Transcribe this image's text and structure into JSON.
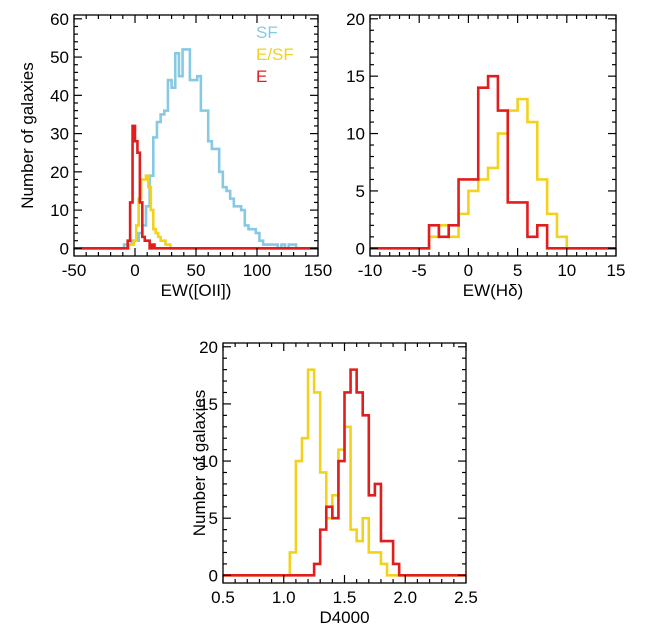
{
  "colors": {
    "SF": "#87c9e3",
    "E/SF": "#f2d21c",
    "E": "#e01e1e"
  },
  "chart_data": [
    {
      "type": "histogram",
      "xlabel": "EW([OII])",
      "ylabel": "Number of galaxies",
      "xlim": [
        -50,
        150
      ],
      "ylim": [
        -2,
        61
      ],
      "xticks": [
        "-50",
        "0",
        "50",
        "100",
        "150"
      ],
      "yticks": [
        "0",
        "10",
        "20",
        "30",
        "40",
        "50",
        "60"
      ],
      "legend": {
        "placement": "top-right",
        "entries": [
          "SF",
          "E/SF",
          "E"
        ]
      },
      "series": [
        {
          "name": "SF",
          "color_key": "SF",
          "edges": [
            -18,
            -15,
            -12,
            -9,
            -6,
            -3,
            0,
            3,
            6,
            9,
            12,
            15,
            18,
            21,
            24,
            27,
            30,
            33,
            36,
            39,
            42,
            45,
            48,
            51,
            54,
            57,
            60,
            63,
            66,
            69,
            72,
            75,
            78,
            81,
            84,
            87,
            90,
            93,
            96,
            99,
            102,
            105,
            108,
            111,
            114,
            117,
            120,
            123,
            126,
            129,
            132,
            135,
            138,
            141,
            144
          ],
          "values": [
            0,
            0,
            0,
            1,
            1,
            2,
            2,
            4,
            6,
            11,
            19,
            29,
            33,
            35,
            36,
            44,
            42,
            51,
            45,
            52,
            52,
            44,
            44,
            45,
            36,
            36,
            28,
            26,
            26,
            20,
            16,
            15,
            13,
            11,
            11,
            10,
            6,
            5,
            5,
            4,
            2,
            1,
            1,
            1,
            1,
            0,
            1,
            0,
            1,
            1,
            0,
            0,
            0,
            0
          ]
        },
        {
          "name": "E/SF",
          "color_key": "E/SF",
          "edges": [
            -5,
            -3,
            -1,
            1,
            3,
            5,
            7,
            9,
            11,
            13,
            15,
            17,
            19,
            21,
            23,
            25,
            27,
            29,
            31
          ],
          "values": [
            1,
            1,
            2,
            6,
            13,
            18,
            18,
            19,
            16,
            10,
            5,
            4,
            3,
            2,
            2,
            1,
            1,
            0
          ]
        },
        {
          "name": "E",
          "color_key": "E",
          "edges": [
            -6,
            -4,
            -2,
            0,
            2,
            4,
            6,
            8,
            10,
            12,
            14,
            16
          ],
          "values": [
            2,
            12,
            32,
            28,
            25,
            12,
            3,
            2,
            2,
            0,
            1
          ]
        }
      ]
    },
    {
      "type": "histogram",
      "xlabel": "EW(Hδ)",
      "ylabel": "",
      "xlim": [
        -10,
        15
      ],
      "ylim": [
        -0.67,
        20.33
      ],
      "xticks": [
        "-10",
        "-5",
        "0",
        "5",
        "10",
        "15"
      ],
      "yticks": [
        "0",
        "5",
        "10",
        "15",
        "20"
      ],
      "series": [
        {
          "name": "E/SF",
          "color_key": "E/SF",
          "edges": [
            -4,
            -3,
            -2,
            -1,
            0,
            1,
            2,
            3,
            4,
            5,
            6,
            7,
            8,
            9,
            10
          ],
          "values": [
            1,
            2,
            1,
            3,
            5,
            6,
            7,
            10,
            12,
            13,
            11,
            6,
            3,
            1
          ]
        },
        {
          "name": "E",
          "color_key": "E",
          "edges": [
            -4,
            -3,
            -2,
            -1,
            0,
            1,
            2,
            3,
            4,
            5,
            6,
            7,
            8
          ],
          "values": [
            2,
            1,
            2,
            6,
            6,
            14,
            15,
            12,
            4,
            4,
            1,
            2
          ]
        }
      ]
    },
    {
      "type": "histogram",
      "xlabel": "D4000",
      "ylabel": "Number of galaxies",
      "xlim": [
        0.5,
        2.5
      ],
      "ylim": [
        -0.67,
        20.33
      ],
      "xticks": [
        "0.5",
        "1.0",
        "1.5",
        "2.0",
        "2.5"
      ],
      "yticks": [
        "0",
        "5",
        "10",
        "15",
        "20"
      ],
      "series": [
        {
          "name": "E/SF",
          "color_key": "E/SF",
          "edges": [
            1.05,
            1.1,
            1.15,
            1.2,
            1.25,
            1.3,
            1.35,
            1.4,
            1.45,
            1.5,
            1.55,
            1.6,
            1.65,
            1.7,
            1.75,
            1.8,
            1.85
          ],
          "values": [
            2,
            10,
            12,
            18,
            16,
            9,
            5,
            7,
            11,
            13,
            4,
            3,
            5,
            2,
            2,
            1
          ]
        },
        {
          "name": "E",
          "color_key": "E",
          "edges": [
            1.25,
            1.3,
            1.35,
            1.4,
            1.45,
            1.5,
            1.55,
            1.6,
            1.65,
            1.7,
            1.75,
            1.8,
            1.85,
            1.9,
            1.95
          ],
          "values": [
            1,
            4,
            6,
            5,
            10,
            16,
            18,
            16,
            14,
            7,
            8,
            3,
            3,
            1
          ]
        }
      ]
    }
  ]
}
